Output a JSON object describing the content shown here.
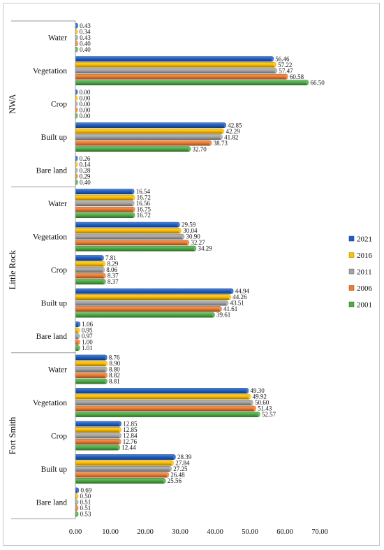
{
  "chart_data": {
    "type": "bar",
    "orientation": "horizontal",
    "title": "",
    "xlabel": "",
    "ylabel": "",
    "xlim": [
      0,
      70
    ],
    "xticks": [
      "0.00",
      "10.00",
      "20.00",
      "30.00",
      "40.00",
      "50.00",
      "60.00",
      "70.00"
    ],
    "grid": false,
    "legend_position": "right",
    "series": [
      {
        "name": "2021",
        "color": "#1f5fc4"
      },
      {
        "name": "2016",
        "color": "#ffc000"
      },
      {
        "name": "2011",
        "color": "#a5a5a5"
      },
      {
        "name": "2006",
        "color": "#ed7d31"
      },
      {
        "name": "2001",
        "color": "#4cad45"
      }
    ],
    "groups": [
      {
        "region": "NWA",
        "categories": [
          {
            "name": "Water",
            "values": [
              0.43,
              0.34,
              0.43,
              0.4,
              0.4
            ],
            "labels": [
              "0.43",
              "0.34",
              "0.43",
              "0.40",
              "0.40"
            ]
          },
          {
            "name": "Vegetation",
            "values": [
              56.46,
              57.22,
              57.47,
              60.58,
              66.5
            ],
            "labels": [
              "56.46",
              "57.22",
              "57.47",
              "60.58",
              "66.50"
            ]
          },
          {
            "name": "Crop",
            "values": [
              0.0,
              0.0,
              0.0,
              0.0,
              0.0
            ],
            "labels": [
              "0.00",
              "0.00",
              "0.00",
              "0.00",
              "0.00"
            ]
          },
          {
            "name": "Built up",
            "values": [
              42.85,
              42.29,
              41.82,
              38.73,
              32.7
            ],
            "labels": [
              "42.85",
              "42.29",
              "41.82",
              "38.73",
              "32.70"
            ]
          },
          {
            "name": "Bare land",
            "values": [
              0.26,
              0.14,
              0.28,
              0.29,
              0.4
            ],
            "labels": [
              "0.26",
              "0.14",
              "0.28",
              "0.29",
              "0.40"
            ]
          }
        ]
      },
      {
        "region": "Little Rock",
        "categories": [
          {
            "name": "Water",
            "values": [
              16.54,
              16.72,
              16.56,
              16.75,
              16.72
            ],
            "labels": [
              "16.54",
              "16.72",
              "16.56",
              "16.75",
              "16.72"
            ]
          },
          {
            "name": "Vegetation",
            "values": [
              29.59,
              30.04,
              30.9,
              32.27,
              34.29
            ],
            "labels": [
              "29.59",
              "30.04",
              "30.90",
              "32.27",
              "34.29"
            ]
          },
          {
            "name": "Crop",
            "values": [
              7.81,
              8.29,
              8.06,
              8.37,
              8.37
            ],
            "labels": [
              "7.81",
              "8.29",
              "8.06",
              "8.37",
              "8.37"
            ]
          },
          {
            "name": "Built up",
            "values": [
              44.94,
              44.26,
              43.51,
              41.61,
              39.61
            ],
            "labels": [
              "44.94",
              "44.26",
              "43.51",
              "41.61",
              "39.61"
            ]
          },
          {
            "name": "Bare land",
            "values": [
              1.06,
              0.95,
              0.97,
              1.0,
              1.01
            ],
            "labels": [
              "1.06",
              "0.95",
              "0.97",
              "1.00",
              "1.01"
            ]
          }
        ]
      },
      {
        "region": "Fort Smith",
        "categories": [
          {
            "name": "Water",
            "values": [
              8.76,
              8.9,
              8.8,
              8.82,
              8.81
            ],
            "labels": [
              "8.76",
              "8.90",
              "8.80",
              "8.82",
              "8.81"
            ]
          },
          {
            "name": "Vegetation",
            "values": [
              49.3,
              49.92,
              50.6,
              51.43,
              52.57
            ],
            "labels": [
              "49.30",
              "49.92",
              "50.60",
              "51.43",
              "52.57"
            ]
          },
          {
            "name": "Crop",
            "values": [
              12.85,
              12.85,
              12.84,
              12.76,
              12.44
            ],
            "labels": [
              "12.85",
              "12.85",
              "12.84",
              "12.76",
              "12.44"
            ]
          },
          {
            "name": "Built up",
            "values": [
              28.39,
              27.84,
              27.25,
              26.48,
              25.56
            ],
            "labels": [
              "28.39",
              "27.84",
              "27.25",
              "26.48",
              "25.56"
            ]
          },
          {
            "name": "Bare land",
            "values": [
              0.69,
              0.5,
              0.51,
              0.51,
              0.53
            ],
            "labels": [
              "0.69",
              "0.50",
              "0.51",
              "0.51",
              "0.53"
            ]
          }
        ]
      }
    ]
  }
}
